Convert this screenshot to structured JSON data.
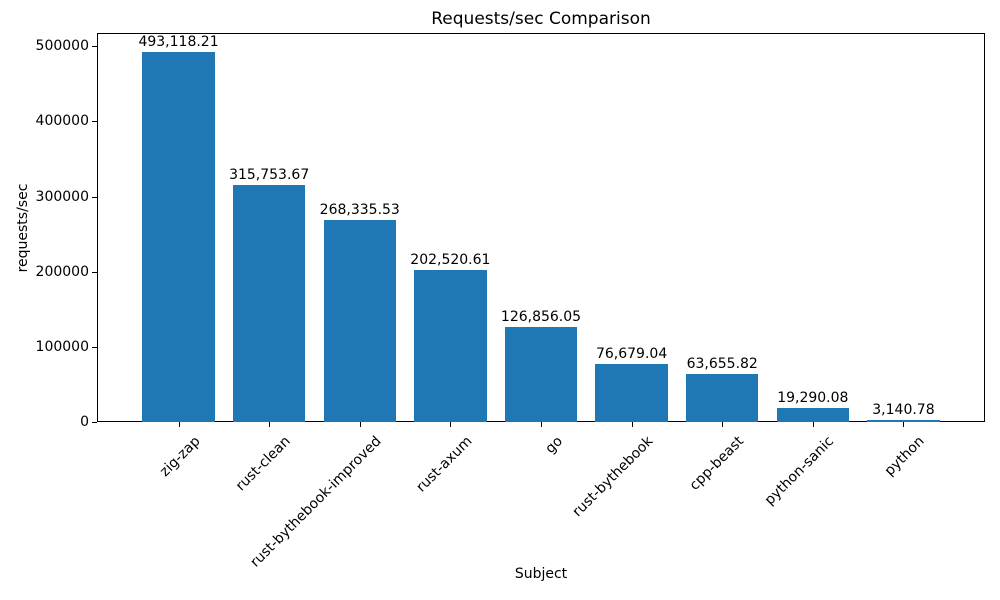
{
  "chart_data": {
    "type": "bar",
    "title": "Requests/sec Comparison",
    "xlabel": "Subject",
    "ylabel": "requests/sec",
    "categories": [
      "zig-zap",
      "rust-clean",
      "rust-bythebook-improved",
      "rust-axum",
      "go",
      "rust-bythebook",
      "cpp-beast",
      "python-sanic",
      "python"
    ],
    "values": [
      493118.21,
      315753.67,
      268335.53,
      202520.61,
      126856.05,
      76679.04,
      63655.82,
      19290.08,
      3140.78
    ],
    "value_labels": [
      "493,118.21",
      "315,753.67",
      "268,335.53",
      "202,520.61",
      "126,856.05",
      "76,679.04",
      "63,655.82",
      "19,290.08",
      "3,140.78"
    ],
    "yticks": [
      0,
      100000,
      200000,
      300000,
      400000,
      500000
    ],
    "ytick_labels": [
      "0",
      "100000",
      "200000",
      "300000",
      "400000",
      "500000"
    ],
    "ylim": [
      0,
      517774
    ],
    "bar_color": "#1f77b4",
    "grid": false,
    "legend_position": "none",
    "x_tick_rotation_deg": 45
  }
}
